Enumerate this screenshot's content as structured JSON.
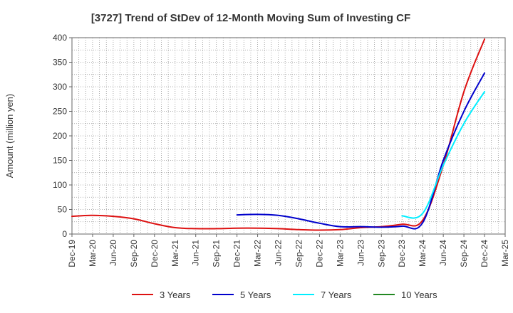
{
  "chart_data": {
    "type": "line",
    "title": "[3727]  Trend of StDev of 12-Month Moving Sum of Investing CF",
    "ylabel": "Amount (million yen)",
    "xlabel": "",
    "ylim": [
      0,
      400
    ],
    "yticks": [
      0,
      50,
      100,
      150,
      200,
      250,
      300,
      350,
      400
    ],
    "categories": [
      "Dec-19",
      "Mar-20",
      "Jun-20",
      "Sep-20",
      "Dec-20",
      "Mar-21",
      "Jun-21",
      "Sep-21",
      "Dec-21",
      "Mar-22",
      "Jun-22",
      "Sep-22",
      "Dec-22",
      "Mar-23",
      "Jun-23",
      "Sep-23",
      "Dec-23",
      "Mar-24",
      "Jun-24",
      "Sep-24",
      "Dec-24",
      "Mar-25"
    ],
    "grid": true,
    "legend_position": "bottom",
    "series": [
      {
        "name": "3 Years",
        "color": "#dd1111",
        "values": [
          36,
          38,
          36,
          31,
          21,
          13,
          11,
          11,
          12,
          12,
          11,
          9,
          8,
          9,
          13,
          15,
          20,
          28,
          140,
          290,
          397,
          null
        ]
      },
      {
        "name": "5 Years",
        "color": "#0000cc",
        "values": [
          null,
          null,
          null,
          null,
          null,
          null,
          null,
          null,
          39,
          40,
          38,
          31,
          22,
          15,
          15,
          14,
          16,
          23,
          150,
          250,
          328,
          null
        ]
      },
      {
        "name": "7 Years",
        "color": "#00eeff",
        "values": [
          null,
          null,
          null,
          null,
          null,
          null,
          null,
          null,
          null,
          null,
          null,
          null,
          null,
          null,
          null,
          null,
          37,
          42,
          140,
          225,
          290,
          null
        ]
      },
      {
        "name": "10 Years",
        "color": "#228822",
        "values": [
          null,
          null,
          null,
          null,
          null,
          null,
          null,
          null,
          null,
          null,
          null,
          null,
          null,
          null,
          null,
          null,
          null,
          null,
          null,
          null,
          null,
          null
        ]
      }
    ]
  }
}
